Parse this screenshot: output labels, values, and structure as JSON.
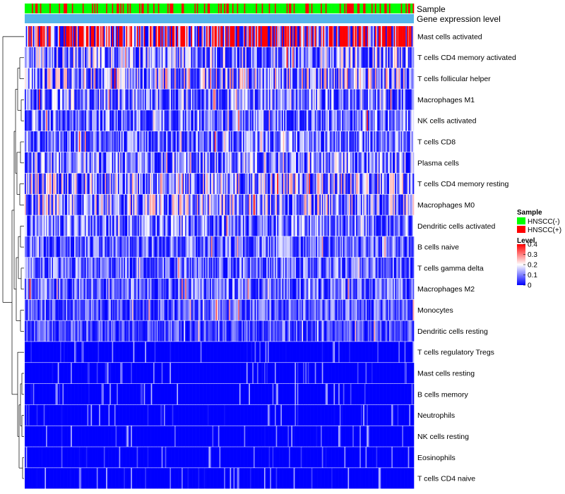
{
  "chart_data": {
    "type": "heatmap",
    "title": "",
    "annotation_tracks": {
      "sample": {
        "label": "Sample",
        "legend_title": "Sample",
        "categories": [
          "HNSCC(-)",
          "HNSCC(+)"
        ],
        "colors": [
          "#00ff00",
          "#ff0000"
        ],
        "positive_fraction": 0.25
      },
      "gene_expression": {
        "label": "Gene expression level",
        "color": "#56b4e9"
      }
    },
    "rows": [
      {
        "name": "Mast cells activated",
        "mean": 0.3
      },
      {
        "name": "T cells CD4 memory activated",
        "mean": 0.1
      },
      {
        "name": "T cells follicular helper",
        "mean": 0.12
      },
      {
        "name": "Macrophages M1",
        "mean": 0.09
      },
      {
        "name": "NK cells activated",
        "mean": 0.08
      },
      {
        "name": "T cells CD8",
        "mean": 0.08
      },
      {
        "name": "Plasma cells",
        "mean": 0.09
      },
      {
        "name": "T cells CD4 memory resting",
        "mean": 0.11
      },
      {
        "name": "Macrophages M0",
        "mean": 0.11
      },
      {
        "name": "Dendritic cells activated",
        "mean": 0.08
      },
      {
        "name": "B cells naive",
        "mean": 0.07
      },
      {
        "name": "T cells gamma delta",
        "mean": 0.07
      },
      {
        "name": "Macrophages M2",
        "mean": 0.07
      },
      {
        "name": "Monocytes",
        "mean": 0.06
      },
      {
        "name": "Dendritic cells resting",
        "mean": 0.05
      },
      {
        "name": "T cells regulatory  Tregs",
        "mean": 0.03
      },
      {
        "name": "Mast cells resting",
        "mean": 0.02
      },
      {
        "name": "B cells memory",
        "mean": 0.02
      },
      {
        "name": "Neutrophils",
        "mean": 0.02
      },
      {
        "name": "NK cells resting",
        "mean": 0.01
      },
      {
        "name": "Eosinophils",
        "mean": 0.01
      },
      {
        "name": "T cells CD4 naive",
        "mean": 0.01
      }
    ],
    "n_samples": 330,
    "color_scale": {
      "legend_title": "Level",
      "min": 0,
      "max": 0.4,
      "ticks": [
        0,
        0.1,
        0.2,
        0.3,
        0.4
      ],
      "tick_labels": [
        "0",
        "0.1",
        "0.2",
        "0.3",
        "0.4"
      ],
      "low_color": "#0000ff",
      "mid_color": "#ffffff",
      "high_color": "#ff0000",
      "mid_value": 0.2
    },
    "dendrogram": "rows",
    "legend_position": "right"
  }
}
